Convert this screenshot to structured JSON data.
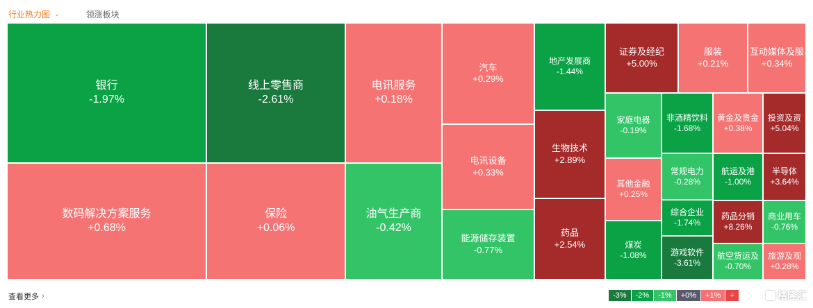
{
  "tabs": {
    "active": "行业热力图",
    "other": "领涨板块"
  },
  "colors": {
    "deep_green": "#1a7a3e",
    "green": "#0ba246",
    "light_green": "#34c468",
    "light_red": "#f57373",
    "deep_red": "#a52a2a",
    "neutral": "#5a5a6a"
  },
  "tiles": [
    {
      "name": "银行",
      "change": "-1.97%",
      "color": "#0ba246"
    },
    {
      "name": "线上零售商",
      "change": "-2.61%",
      "color": "#1a7a3e"
    },
    {
      "name": "电讯服务",
      "change": "+0.18%",
      "color": "#f57373"
    },
    {
      "name": "汽车",
      "change": "+0.29%",
      "color": "#f57373"
    },
    {
      "name": "地产发展商",
      "change": "-1.44%",
      "color": "#0ba246"
    },
    {
      "name": "证券及经纪",
      "change": "+5.00%",
      "color": "#a52a2a"
    },
    {
      "name": "服装",
      "change": "+0.21%",
      "color": "#f57373"
    },
    {
      "name": "互动媒体及服",
      "change": "+0.34%",
      "color": "#f57373"
    },
    {
      "name": "数码解决方案服务",
      "change": "+0.68%",
      "color": "#f57373"
    },
    {
      "name": "保险",
      "change": "+0.06%",
      "color": "#f57373"
    },
    {
      "name": "油气生产商",
      "change": "-0.42%",
      "color": "#34c468"
    },
    {
      "name": "电讯设备",
      "change": "+0.33%",
      "color": "#f57373"
    },
    {
      "name": "能源储存装置",
      "change": "-0.77%",
      "color": "#34c468"
    },
    {
      "name": "生物技术",
      "change": "+2.89%",
      "color": "#a52a2a"
    },
    {
      "name": "药品",
      "change": "+2.54%",
      "color": "#a52a2a"
    },
    {
      "name": "家庭电器",
      "change": "-0.19%",
      "color": "#34c468"
    },
    {
      "name": "非酒精饮料",
      "change": "-1.68%",
      "color": "#0ba246"
    },
    {
      "name": "黄金及贵金",
      "change": "+0.38%",
      "color": "#f57373"
    },
    {
      "name": "投资及资",
      "change": "+5.04%",
      "color": "#a52a2a"
    },
    {
      "name": "其他金融",
      "change": "+0.25%",
      "color": "#f57373"
    },
    {
      "name": "常规电力",
      "change": "-0.28%",
      "color": "#34c468"
    },
    {
      "name": "航运及港",
      "change": "-1.00%",
      "color": "#0ba246"
    },
    {
      "name": "半导体",
      "change": "+3.64%",
      "color": "#a52a2a"
    },
    {
      "name": "煤炭",
      "change": "-1.08%",
      "color": "#0ba246"
    },
    {
      "name": "综合企业",
      "change": "-1.74%",
      "color": "#0ba246"
    },
    {
      "name": "药品分销",
      "change": "+8.26%",
      "color": "#a52a2a"
    },
    {
      "name": "商业用车",
      "change": "-0.76%",
      "color": "#34c468"
    },
    {
      "name": "游戏软件",
      "change": "-3.61%",
      "color": "#1a7a3e"
    },
    {
      "name": "航空货运及",
      "change": "-0.70%",
      "color": "#34c468"
    },
    {
      "name": "旅游及观",
      "change": "+0.28%",
      "color": "#f57373"
    }
  ],
  "footer": {
    "more_label": "查看更多"
  },
  "legend": [
    {
      "label": "-3%",
      "color": "#1a7a3e"
    },
    {
      "label": "-2%",
      "color": "#0ba246"
    },
    {
      "label": "-1%",
      "color": "#34c468"
    },
    {
      "label": "+0%",
      "color": "#5a5a6a"
    },
    {
      "label": "+1%",
      "color": "#f57373"
    },
    {
      "label": "+",
      "color": "#e84545"
    }
  ],
  "watermark": {
    "text": "格隆汇"
  }
}
